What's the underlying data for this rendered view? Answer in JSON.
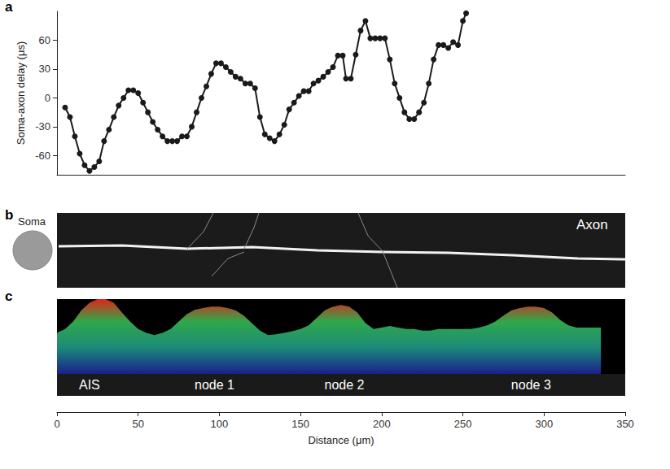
{
  "chart_data": [
    {
      "type": "line",
      "title": "a",
      "y_label": "Soma-axon delay (μs)",
      "x": [
        5,
        8,
        11,
        14,
        17,
        20,
        23,
        26,
        29,
        32,
        35,
        38,
        41,
        44,
        47,
        50,
        53,
        56,
        59,
        62,
        65,
        68,
        71,
        74,
        77,
        80,
        83,
        86,
        89,
        92,
        95,
        98,
        101,
        104,
        107,
        110,
        113,
        116,
        119,
        122,
        125,
        128,
        131,
        134,
        137,
        140,
        143,
        146,
        149,
        152,
        155,
        158,
        161,
        164,
        167,
        170,
        173,
        176,
        178,
        181,
        184,
        187,
        190,
        193,
        196,
        199,
        202,
        205,
        208,
        211,
        214,
        217,
        220,
        223,
        226,
        229,
        232,
        235,
        238,
        241,
        244,
        247,
        250,
        252
      ],
      "values": [
        -10,
        -20,
        -40,
        -58,
        -70,
        -76,
        -72,
        -66,
        -45,
        -33,
        -20,
        -8,
        0,
        8,
        8,
        5,
        -5,
        -15,
        -25,
        -33,
        -40,
        -45,
        -45,
        -45,
        -40,
        -40,
        -30,
        -15,
        0,
        12,
        25,
        36,
        36,
        32,
        27,
        22,
        20,
        15,
        15,
        10,
        -20,
        -38,
        -42,
        -45,
        -38,
        -28,
        -12,
        -5,
        2,
        7,
        7,
        15,
        18,
        22,
        27,
        32,
        44,
        44,
        20,
        20,
        45,
        70,
        80,
        62,
        62,
        62,
        62,
        40,
        15,
        0,
        -15,
        -22,
        -22,
        -15,
        -5,
        15,
        40,
        55,
        55,
        52,
        58,
        55,
        80,
        88
      ],
      "xlim": [
        0,
        350
      ],
      "ylim": [
        -80,
        90
      ],
      "yticks": [
        -60,
        -30,
        0,
        30,
        60
      ],
      "tick_labels": "y",
      "grid": false,
      "marker": "circle",
      "color": "#1a1a1a"
    },
    {
      "type": "area",
      "title": "c",
      "x_label": "Distance (μm)",
      "x": [
        0,
        5,
        10,
        15,
        20,
        25,
        30,
        35,
        40,
        45,
        50,
        55,
        60,
        65,
        70,
        75,
        80,
        85,
        90,
        95,
        100,
        105,
        110,
        115,
        120,
        125,
        130,
        135,
        140,
        145,
        150,
        155,
        160,
        165,
        170,
        175,
        180,
        185,
        190,
        195,
        200,
        205,
        210,
        215,
        220,
        225,
        230,
        235,
        240,
        245,
        250,
        255,
        260,
        265,
        270,
        275,
        280,
        285,
        290,
        295,
        300,
        305,
        310,
        315,
        320,
        325,
        330,
        335
      ],
      "values": [
        55,
        60,
        70,
        85,
        95,
        100,
        100,
        95,
        82,
        70,
        60,
        55,
        52,
        55,
        60,
        70,
        80,
        86,
        88,
        90,
        90,
        88,
        85,
        78,
        68,
        58,
        52,
        53,
        55,
        57,
        60,
        65,
        75,
        85,
        90,
        92,
        90,
        82,
        68,
        60,
        62,
        64,
        62,
        60,
        60,
        58,
        58,
        60,
        60,
        60,
        60,
        60,
        62,
        65,
        70,
        78,
        85,
        88,
        90,
        90,
        88,
        82,
        72,
        65,
        62,
        62,
        62,
        62
      ],
      "xlim": [
        0,
        350
      ],
      "ylim": [
        0,
        100
      ],
      "xticks": [
        0,
        50,
        100,
        150,
        200,
        250,
        300,
        350
      ],
      "tick_labels": "x",
      "grid": false,
      "annotations": [
        {
          "x": 20,
          "text": "AIS"
        },
        {
          "x": 97,
          "text": "node 1"
        },
        {
          "x": 177,
          "text": "node 2"
        },
        {
          "x": 292,
          "text": "node 3"
        }
      ]
    }
  ],
  "image_panel": {
    "title": "b",
    "soma_label": "Soma",
    "axon_label": "Axon"
  }
}
